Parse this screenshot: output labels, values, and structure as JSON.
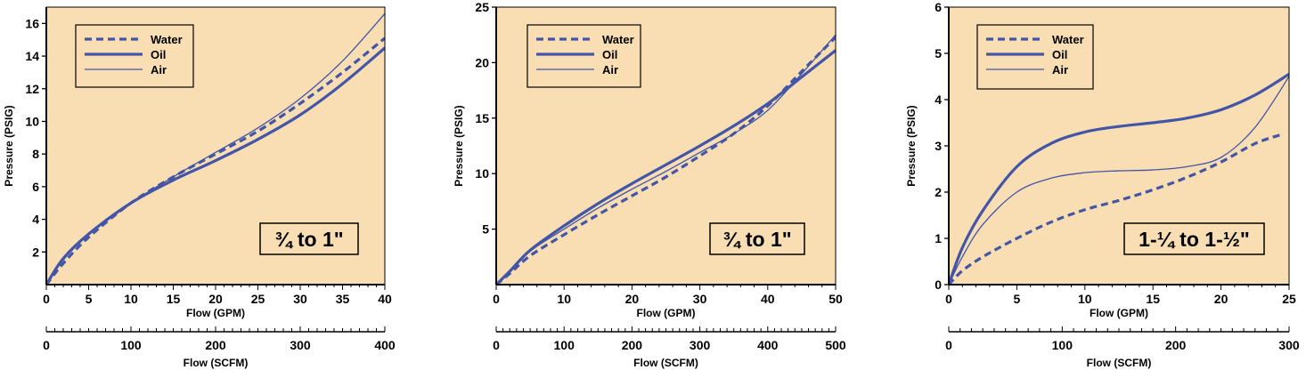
{
  "colors": {
    "plot_bg": "#f9deb3",
    "line": "#4255a7",
    "axis": "#000000"
  },
  "legend_entries": [
    {
      "label": "Water",
      "style": "dashed"
    },
    {
      "label": "Oil",
      "style": "thick"
    },
    {
      "label": "Air",
      "style": "thin"
    }
  ],
  "chart_data": [
    {
      "type": "line",
      "size_label": "¾ to 1\"",
      "ylabel": "Pressure (PSIG)",
      "xlabel": "Flow (GPM)",
      "x2label": "Flow (SCFM)",
      "xlim": [
        0,
        40
      ],
      "ylim": [
        0,
        17
      ],
      "xticks": [
        0,
        5,
        10,
        15,
        20,
        25,
        30,
        35,
        40
      ],
      "yticks": [
        2,
        4,
        6,
        8,
        10,
        12,
        14,
        16
      ],
      "x2lim": [
        0,
        400
      ],
      "x2ticks": [
        0,
        100,
        200,
        300,
        400
      ],
      "series": [
        {
          "name": "Water",
          "x": [
            0,
            2,
            5,
            10,
            15,
            20,
            25,
            30,
            35,
            40
          ],
          "y": [
            0,
            1.3,
            2.9,
            5.0,
            6.6,
            8.0,
            9.4,
            11.1,
            13.0,
            15.1
          ]
        },
        {
          "name": "Oil",
          "x": [
            0,
            2,
            5,
            10,
            15,
            20,
            25,
            30,
            35,
            40
          ],
          "y": [
            0,
            1.6,
            3.1,
            5.0,
            6.4,
            7.6,
            8.9,
            10.4,
            12.3,
            14.5
          ]
        },
        {
          "name": "Air",
          "x": [
            0,
            2,
            5,
            10,
            15,
            20,
            25,
            30,
            35,
            40
          ],
          "y": [
            0,
            1.5,
            3.1,
            5.0,
            6.6,
            8.1,
            9.6,
            11.4,
            13.7,
            16.6
          ]
        }
      ]
    },
    {
      "type": "line",
      "size_label": "¾ to 1\"",
      "ylabel": "Pressure (PSIG)",
      "xlabel": "Flow (GPM)",
      "x2label": "Flow (SCFM)",
      "xlim": [
        0,
        50
      ],
      "ylim": [
        0,
        25
      ],
      "xticks": [
        0,
        10,
        20,
        30,
        40,
        50
      ],
      "yticks": [
        5,
        10,
        15,
        20,
        25
      ],
      "x2lim": [
        0,
        500
      ],
      "x2ticks": [
        0,
        100,
        200,
        300,
        400,
        500
      ],
      "series": [
        {
          "name": "Water",
          "x": [
            0,
            2,
            5,
            10,
            15,
            20,
            25,
            30,
            35,
            40,
            45,
            50
          ],
          "y": [
            0,
            1.0,
            2.6,
            4.5,
            6.3,
            8.0,
            9.7,
            11.6,
            13.6,
            16.1,
            19.2,
            22.3
          ]
        },
        {
          "name": "Oil",
          "x": [
            0,
            2,
            5,
            10,
            15,
            20,
            25,
            30,
            35,
            40,
            45,
            50
          ],
          "y": [
            0,
            1.2,
            3.1,
            5.3,
            7.3,
            9.1,
            10.8,
            12.5,
            14.3,
            16.3,
            18.7,
            21.1
          ]
        },
        {
          "name": "Air",
          "x": [
            0,
            2,
            5,
            10,
            15,
            20,
            25,
            30,
            35,
            40,
            45,
            50
          ],
          "y": [
            0,
            1.1,
            3.0,
            5.0,
            6.9,
            8.6,
            10.2,
            11.9,
            13.6,
            15.7,
            19.0,
            22.5
          ]
        }
      ]
    },
    {
      "type": "line",
      "size_label": "1-¼ to 1-½\"",
      "ylabel": "Pressure (PSIG)",
      "xlabel": "Flow (GPM)",
      "x2label": "Flow (SCFM)",
      "xlim": [
        0,
        25
      ],
      "ylim": [
        0,
        6
      ],
      "xticks": [
        0,
        5,
        10,
        15,
        20,
        25
      ],
      "yticks": [
        0,
        1,
        2,
        3,
        4,
        5,
        6
      ],
      "x2lim": [
        0,
        300
      ],
      "x2ticks": [
        0,
        100,
        200,
        300
      ],
      "series": [
        {
          "name": "Water",
          "x": [
            0,
            1,
            2.5,
            5,
            7.5,
            10,
            12.5,
            15,
            17.5,
            20,
            22.5,
            24.5
          ],
          "y": [
            0,
            0.3,
            0.6,
            1.0,
            1.35,
            1.62,
            1.82,
            2.05,
            2.32,
            2.65,
            3.05,
            3.25
          ]
        },
        {
          "name": "Oil",
          "x": [
            0,
            1,
            2.5,
            5,
            7.5,
            10,
            12.5,
            15,
            17.5,
            20,
            22.5,
            25
          ],
          "y": [
            0,
            0.8,
            1.6,
            2.55,
            3.05,
            3.3,
            3.42,
            3.5,
            3.6,
            3.78,
            4.1,
            4.55
          ]
        },
        {
          "name": "Air",
          "x": [
            0,
            1,
            2.5,
            5,
            7.5,
            10,
            12.5,
            15,
            17.5,
            20,
            22.5,
            25
          ],
          "y": [
            0,
            0.6,
            1.3,
            2.0,
            2.3,
            2.42,
            2.46,
            2.48,
            2.55,
            2.75,
            3.4,
            4.5
          ]
        }
      ]
    }
  ]
}
